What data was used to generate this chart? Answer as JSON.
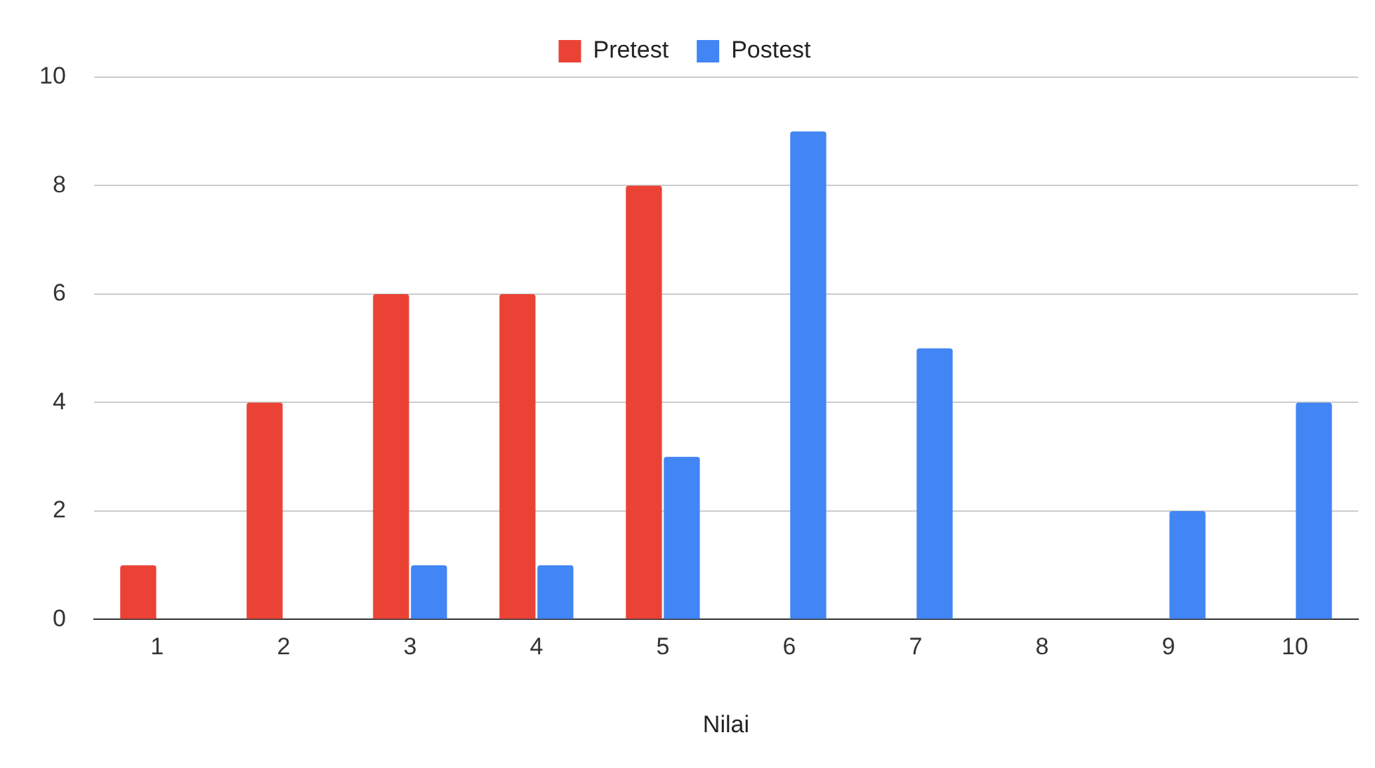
{
  "chart_data": {
    "type": "bar",
    "xlabel": "Nilai",
    "categories": [
      "1",
      "2",
      "3",
      "4",
      "5",
      "6",
      "7",
      "8",
      "9",
      "10"
    ],
    "series": [
      {
        "name": "Pretest",
        "color": "#ea4335",
        "values": [
          1,
          4,
          6,
          6,
          8,
          0,
          0,
          0,
          0,
          0
        ]
      },
      {
        "name": "Postest",
        "color": "#4285f4",
        "values": [
          0,
          0,
          1,
          1,
          3,
          9,
          5,
          0,
          2,
          4
        ]
      }
    ],
    "ylim": [
      0,
      10
    ],
    "yticks": [
      0,
      2,
      4,
      6,
      8,
      10
    ],
    "grid": "y",
    "legend": "top"
  }
}
